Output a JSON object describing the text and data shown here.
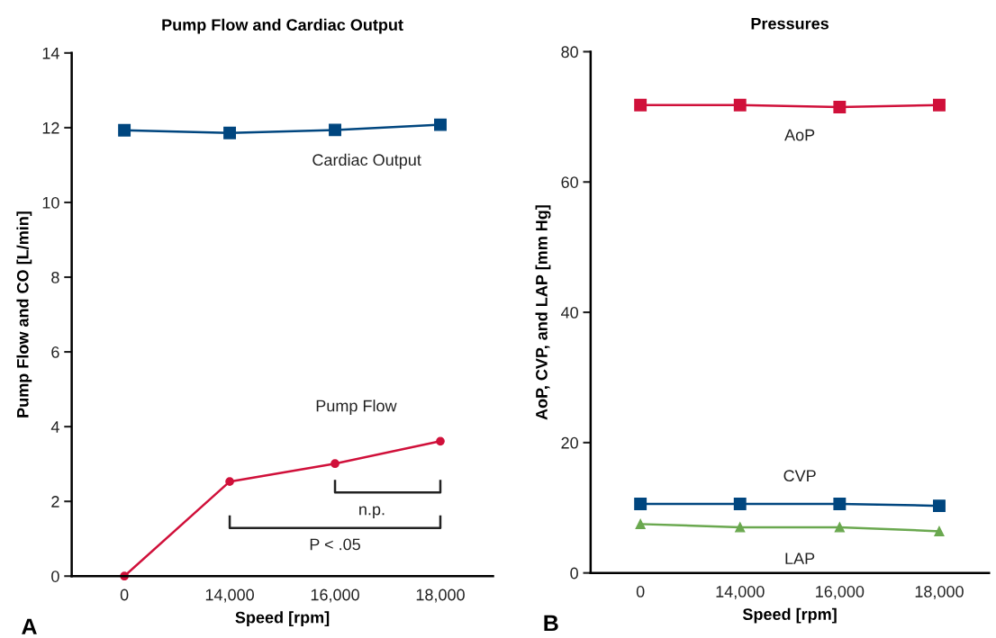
{
  "chart_data": [
    {
      "type": "line",
      "title": "Pump Flow and Cardiac Output",
      "xlabel": "Speed [rpm]",
      "ylabel": "Pump Flow and CO [L/min]",
      "categories": [
        "0",
        "14,000",
        "16,000",
        "18,000"
      ],
      "ylim": [
        0,
        14
      ],
      "yticks": [
        0,
        2,
        4,
        6,
        8,
        10,
        12,
        14
      ],
      "grid": false,
      "legend": false,
      "series": [
        {
          "name": "Cardiac Output",
          "color": "#00467f",
          "marker": "square",
          "values": [
            11.93,
            11.86,
            11.94,
            12.08
          ]
        },
        {
          "name": "Pump Flow",
          "color": "#d0103a",
          "marker": "circle",
          "values": [
            0,
            2.53,
            3.01,
            3.61
          ]
        }
      ],
      "annotations": [
        "A",
        "n.p.",
        "P < .05"
      ]
    },
    {
      "type": "line",
      "title": "Pressures",
      "xlabel": "Speed [rpm]",
      "ylabel": "AoP, CVP, and LAP [mm Hg]",
      "categories": [
        "0",
        "14,000",
        "16,000",
        "18,000"
      ],
      "ylim": [
        0,
        80
      ],
      "yticks": [
        0,
        20,
        40,
        60,
        80
      ],
      "grid": false,
      "legend": false,
      "series": [
        {
          "name": "AoP",
          "color": "#d0103a",
          "marker": "square",
          "values": [
            71.8,
            71.8,
            71.5,
            71.8
          ]
        },
        {
          "name": "CVP",
          "color": "#00467f",
          "marker": "square",
          "values": [
            10.6,
            10.6,
            10.6,
            10.3
          ]
        },
        {
          "name": "LAP",
          "color": "#6aa84f",
          "marker": "triangle",
          "values": [
            7.5,
            7.0,
            7.0,
            6.4
          ]
        }
      ],
      "annotations": [
        "B"
      ]
    }
  ]
}
